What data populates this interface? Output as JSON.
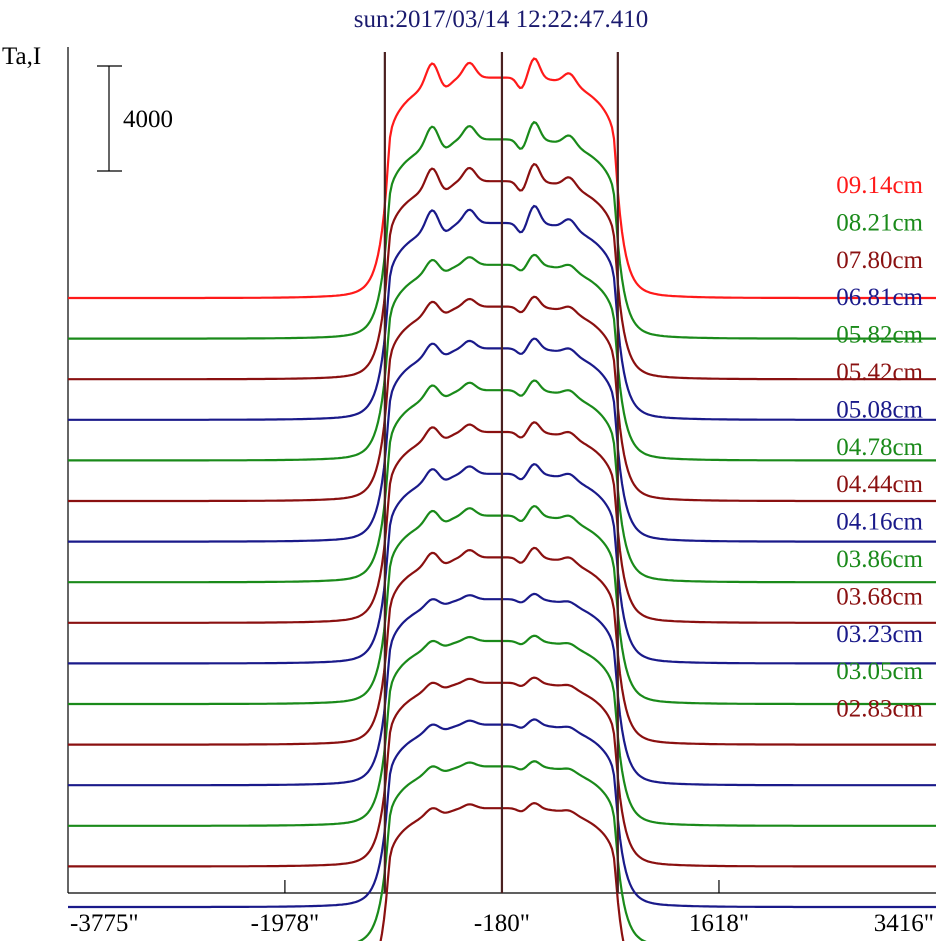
{
  "chart_data": {
    "type": "line",
    "title": "sun:2017/03/14 12:22:47.410",
    "ylabel": "Ta,I",
    "scale_bar_label": "4000",
    "scale_bar_value": 4000,
    "xlim": [
      -3775,
      3416
    ],
    "x_ticks": [
      {
        "value": -3775,
        "label": "-3775\""
      },
      {
        "value": -1978,
        "label": "-1978\""
      },
      {
        "value": -180,
        "label": "-180\""
      },
      {
        "value": 1618,
        "label": "1618\""
      },
      {
        "value": 3416,
        "label": "3416\""
      }
    ],
    "vertical_markers": [
      -1150,
      -180,
      780
    ],
    "marker_color": "#4a2020",
    "series": [
      {
        "name": "09.14cm",
        "color": "#ff1a1a"
      },
      {
        "name": "08.21cm",
        "color": "#1a8a1a"
      },
      {
        "name": "07.80cm",
        "color": "#8a1010"
      },
      {
        "name": "06.81cm",
        "color": "#1a1a8a"
      },
      {
        "name": "05.82cm",
        "color": "#1a8a1a"
      },
      {
        "name": "05.42cm",
        "color": "#8a1010"
      },
      {
        "name": "05.08cm",
        "color": "#1a1a8a"
      },
      {
        "name": "04.78cm",
        "color": "#1a8a1a"
      },
      {
        "name": "04.44cm",
        "color": "#8a1010"
      },
      {
        "name": "04.16cm",
        "color": "#1a1a8a"
      },
      {
        "name": "03.86cm",
        "color": "#1a8a1a"
      },
      {
        "name": "03.68cm",
        "color": "#8a1010"
      },
      {
        "name": "03.23cm",
        "color": "#1a1a8a"
      },
      {
        "name": "03.05cm",
        "color": "#1a8a1a"
      },
      {
        "name": "02.83cm",
        "color": "#8a1010"
      },
      {
        "name": "",
        "color": "#1a1a8a"
      },
      {
        "name": "",
        "color": "#1a8a1a"
      },
      {
        "name": "",
        "color": "#8a1010"
      }
    ]
  }
}
